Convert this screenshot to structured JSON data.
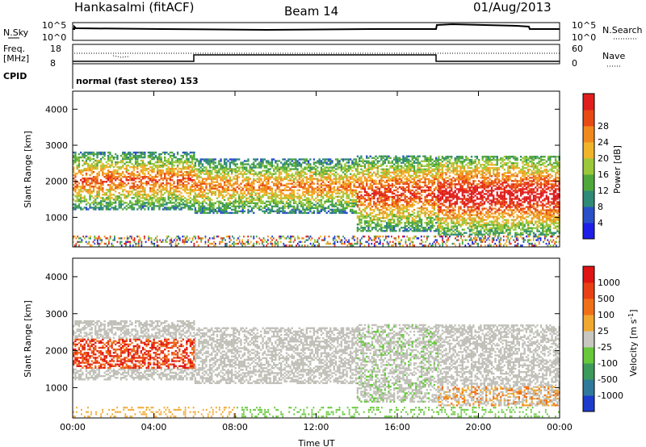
{
  "header": {
    "site": "Hankasalmi (fitACF)",
    "beam": "Beam 14",
    "date": "01/Aug/2013"
  },
  "noise_panel": {
    "left_label": "N.Sky",
    "left_ticks": [
      "10^5",
      "10^0"
    ],
    "right_ticks": [
      "10^5",
      "10^0"
    ],
    "right_label": "N.Search"
  },
  "freq_panel": {
    "left_label_1": "Freq.",
    "left_label_2": "[MHz]",
    "left_ticks": [
      "18",
      "8"
    ],
    "right_ticks": [
      "60",
      "0"
    ],
    "right_label": "Nave"
  },
  "cpid_panel": {
    "label": "CPID",
    "program": "normal (fast stereo) 153"
  },
  "chart_data": [
    {
      "type": "heatmap",
      "parameter": "power",
      "xlabel": "Time UT",
      "ylabel": "Slant Range [km]",
      "xlim": [
        0,
        24
      ],
      "ylim": [
        180,
        4500
      ],
      "y_ticks": [
        "1000",
        "2000",
        "3000",
        "4000"
      ],
      "colorbar": {
        "label": "Power [dB]",
        "ticks": [
          "4",
          "8",
          "12",
          "16",
          "20",
          "24",
          "28"
        ],
        "colors": [
          "#1e1ee6",
          "#2a50c8",
          "#2f8a78",
          "#4fa83c",
          "#9ac83a",
          "#f0b42a",
          "#f08a1e",
          "#e84a14",
          "#e01e1e"
        ]
      },
      "scatter_bands": [
        {
          "t0": 0.0,
          "t1": 6.0,
          "r0": 1200,
          "r1": 2800,
          "peak_db": 24
        },
        {
          "t0": 6.0,
          "t1": 14.0,
          "r0": 1100,
          "r1": 2600,
          "peak_db": 22
        },
        {
          "t0": 14.0,
          "t1": 18.0,
          "r0": 600,
          "r1": 2700,
          "peak_db": 26
        },
        {
          "t0": 18.0,
          "t1": 24.0,
          "r0": 500,
          "r1": 2700,
          "peak_db": 30
        }
      ]
    },
    {
      "type": "heatmap",
      "parameter": "velocity",
      "xlabel": "Time UT",
      "ylabel": "Slant Range [km]",
      "xlim": [
        0,
        24
      ],
      "ylim": [
        180,
        4500
      ],
      "x_ticks": [
        "00:00",
        "04:00",
        "08:00",
        "12:00",
        "16:00",
        "20:00",
        "00:00"
      ],
      "y_ticks": [
        "1000",
        "2000",
        "3000",
        "4000"
      ],
      "colorbar": {
        "label": "Velocity [m s",
        "label_sup": "-1",
        "label_end": "]",
        "ticks": [
          "1000",
          "500",
          "100",
          "25",
          "-25",
          "-100",
          "-500",
          "-1000"
        ],
        "colors": [
          "#1e3ccc",
          "#2f7a9a",
          "#3c9a5a",
          "#66c83a",
          "#c8c8c0",
          "#f0a830",
          "#f07018",
          "#e84014",
          "#e01414"
        ]
      },
      "ground_scatter_color": "#c0c0b8"
    }
  ]
}
